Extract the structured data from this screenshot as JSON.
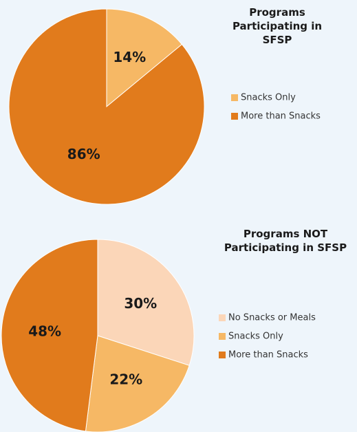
{
  "chart_data": [
    {
      "type": "pie",
      "title": "Programs Participating in SFSP",
      "categories": [
        "Snacks Only",
        "More than Snacks"
      ],
      "values": [
        14,
        86
      ],
      "value_labels": [
        "14%",
        "86%"
      ],
      "colors": [
        "#f6b865",
        "#e17b1c"
      ],
      "legend": "right"
    },
    {
      "type": "pie",
      "title": "Programs NOT Participating in SFSP",
      "categories": [
        "No Snacks or Meals",
        "Snacks Only",
        "More than Snacks"
      ],
      "values": [
        30,
        22,
        48
      ],
      "value_labels": [
        "30%",
        "22%",
        "48%"
      ],
      "colors": [
        "#fbd6b8",
        "#f6b865",
        "#e17b1c"
      ],
      "legend": "right"
    }
  ]
}
